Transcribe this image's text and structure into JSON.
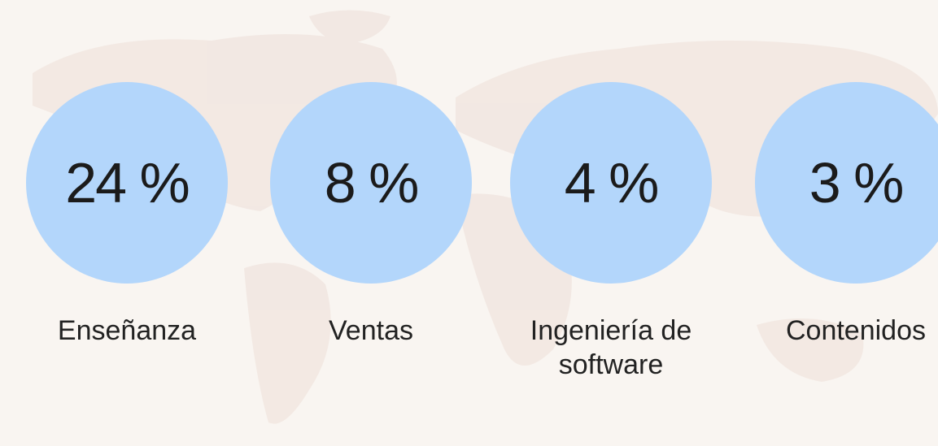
{
  "stats": [
    {
      "value": "24 %",
      "label": "Enseñanza"
    },
    {
      "value": "8 %",
      "label": "Ventas"
    },
    {
      "value": "4 %",
      "label": "Ingeniería de software"
    },
    {
      "value": "3 %",
      "label": "Contenidos"
    }
  ]
}
